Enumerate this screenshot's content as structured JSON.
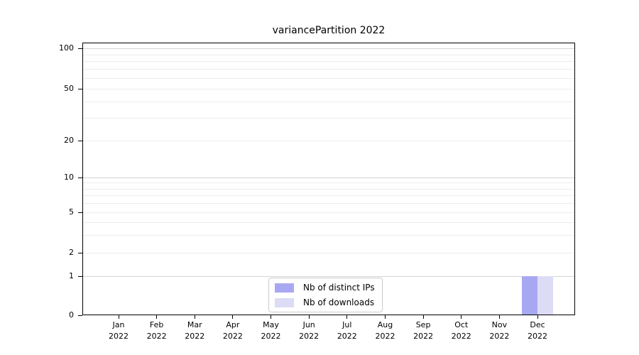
{
  "chart_data": {
    "type": "bar",
    "title": "variancePartition 2022",
    "x_categories": [
      "Jan 2022",
      "Feb 2022",
      "Mar 2022",
      "Apr 2022",
      "May 2022",
      "Jun 2022",
      "Jul 2022",
      "Aug 2022",
      "Sep 2022",
      "Oct 2022",
      "Nov 2022",
      "Dec 2022"
    ],
    "x_tick_months": [
      "Jan",
      "Feb",
      "Mar",
      "Apr",
      "May",
      "Jun",
      "Jul",
      "Aug",
      "Sep",
      "Oct",
      "Nov",
      "Dec"
    ],
    "x_tick_year": "2022",
    "series": [
      {
        "name": "Nb of distinct IPs",
        "color": "#a8a8f2",
        "values": [
          0,
          0,
          0,
          0,
          0,
          0,
          0,
          0,
          0,
          0,
          0,
          1
        ]
      },
      {
        "name": "Nb of downloads",
        "color": "#dcdcf6",
        "values": [
          0,
          0,
          0,
          0,
          0,
          0,
          0,
          0,
          0,
          0,
          0,
          1
        ]
      }
    ],
    "yscale": "symlog",
    "yticks": [
      0,
      1,
      2,
      5,
      10,
      20,
      50,
      100
    ],
    "ylim": [
      0,
      100
    ],
    "grid": "horizontal major+minor",
    "legend_position": "bottom-center-inside",
    "colors": {
      "spine": "#000000",
      "grid_minor": "#ededed",
      "grid_major": "#d4d4d4",
      "background": "#ffffff"
    }
  }
}
